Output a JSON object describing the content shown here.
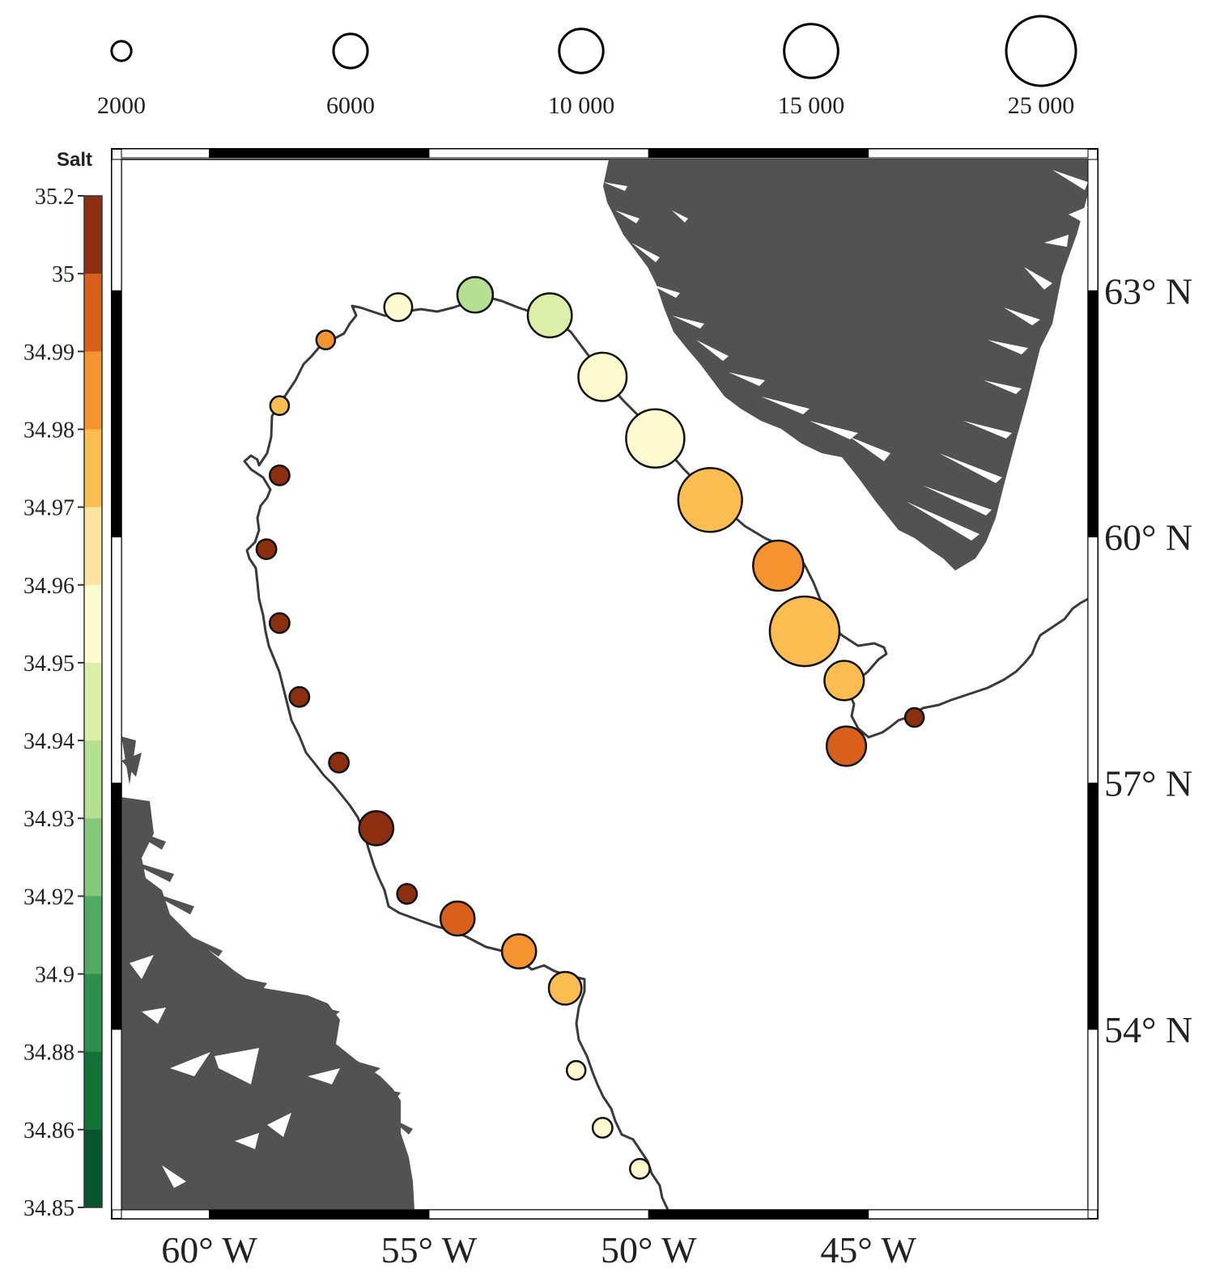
{
  "chart_data": {
    "type": "map-bubble",
    "size_legend": {
      "values": [
        2000,
        6000,
        10000,
        15000,
        25000
      ],
      "labels": [
        "2000",
        "6000",
        "10 000",
        "15 000",
        "25 000"
      ]
    },
    "colorbar": {
      "title": "Salt",
      "labels": [
        "35.2",
        "35",
        "34.99",
        "34.98",
        "34.97",
        "34.96",
        "34.95",
        "34.94",
        "34.93",
        "34.92",
        "34.9",
        "34.88",
        "34.86",
        "34.85"
      ],
      "colors": [
        "#8b2f0f",
        "#d8601a",
        "#f5932f",
        "#fbbd50",
        "#fde3a0",
        "#fefbd0",
        "#ddeea8",
        "#b5df91",
        "#84c87b",
        "#4fab61",
        "#2c8f4c",
        "#127238",
        "#06552f",
        "#063d2a"
      ]
    },
    "x_axis": {
      "range": [
        -62,
        -40
      ],
      "ticks": [
        -60,
        -55,
        -50,
        -45
      ],
      "tick_labels": [
        "60° W",
        "55° W",
        "50° W",
        "45° W"
      ]
    },
    "y_axis": {
      "range": [
        51.8,
        64.6
      ],
      "ticks": [
        54,
        57,
        60,
        63
      ],
      "tick_labels": [
        "54° N",
        "57° N",
        "60° N",
        "63° N"
      ]
    },
    "stations": [
      {
        "lon": -50.2,
        "lat": 52.3,
        "volume": 2000,
        "salt": 34.955
      },
      {
        "lon": -51.05,
        "lat": 52.8,
        "volume": 2000,
        "salt": 34.952
      },
      {
        "lon": -51.65,
        "lat": 53.5,
        "volume": 1800,
        "salt": 34.955
      },
      {
        "lon": -51.9,
        "lat": 54.5,
        "volume": 5500,
        "salt": 34.975
      },
      {
        "lon": -52.95,
        "lat": 54.95,
        "volume": 6000,
        "salt": 34.98
      },
      {
        "lon": -54.35,
        "lat": 55.35,
        "volume": 6000,
        "salt": 34.995
      },
      {
        "lon": -55.5,
        "lat": 55.65,
        "volume": 2000,
        "salt": 35.1
      },
      {
        "lon": -56.2,
        "lat": 56.45,
        "volume": 6000,
        "salt": 35.12
      },
      {
        "lon": -57.05,
        "lat": 57.25,
        "volume": 2000,
        "salt": 35.1
      },
      {
        "lon": -57.95,
        "lat": 58.05,
        "volume": 2000,
        "salt": 35.1
      },
      {
        "lon": -58.4,
        "lat": 58.95,
        "volume": 2000,
        "salt": 35.1
      },
      {
        "lon": -58.7,
        "lat": 59.85,
        "volume": 2000,
        "salt": 35.1
      },
      {
        "lon": -58.4,
        "lat": 60.75,
        "volume": 2000,
        "salt": 35.1
      },
      {
        "lon": -58.4,
        "lat": 61.6,
        "volume": 1800,
        "salt": 34.975
      },
      {
        "lon": -57.35,
        "lat": 62.4,
        "volume": 1800,
        "salt": 34.985
      },
      {
        "lon": -55.7,
        "lat": 62.8,
        "volume": 4000,
        "salt": 34.955
      },
      {
        "lon": -53.95,
        "lat": 62.95,
        "volume": 6500,
        "salt": 34.935
      },
      {
        "lon": -52.25,
        "lat": 62.7,
        "volume": 10000,
        "salt": 34.945
      },
      {
        "lon": -51.05,
        "lat": 61.95,
        "volume": 12000,
        "salt": 34.95
      },
      {
        "lon": -49.85,
        "lat": 61.2,
        "volume": 17500,
        "salt": 34.958
      },
      {
        "lon": -48.6,
        "lat": 60.45,
        "volume": 21000,
        "salt": 34.975
      },
      {
        "lon": -47.05,
        "lat": 59.65,
        "volume": 13000,
        "salt": 34.988
      },
      {
        "lon": -46.45,
        "lat": 58.85,
        "volume": 25000,
        "salt": 34.976
      },
      {
        "lon": -45.55,
        "lat": 58.25,
        "volume": 8000,
        "salt": 34.975
      },
      {
        "lon": -45.5,
        "lat": 57.45,
        "volume": 8000,
        "salt": 34.99
      },
      {
        "lon": -43.95,
        "lat": 57.8,
        "volume": 1800,
        "salt": 35.1
      }
    ]
  },
  "colors": {
    "land": "#525252",
    "track": "#3a3a3a",
    "frame": "#000000"
  }
}
